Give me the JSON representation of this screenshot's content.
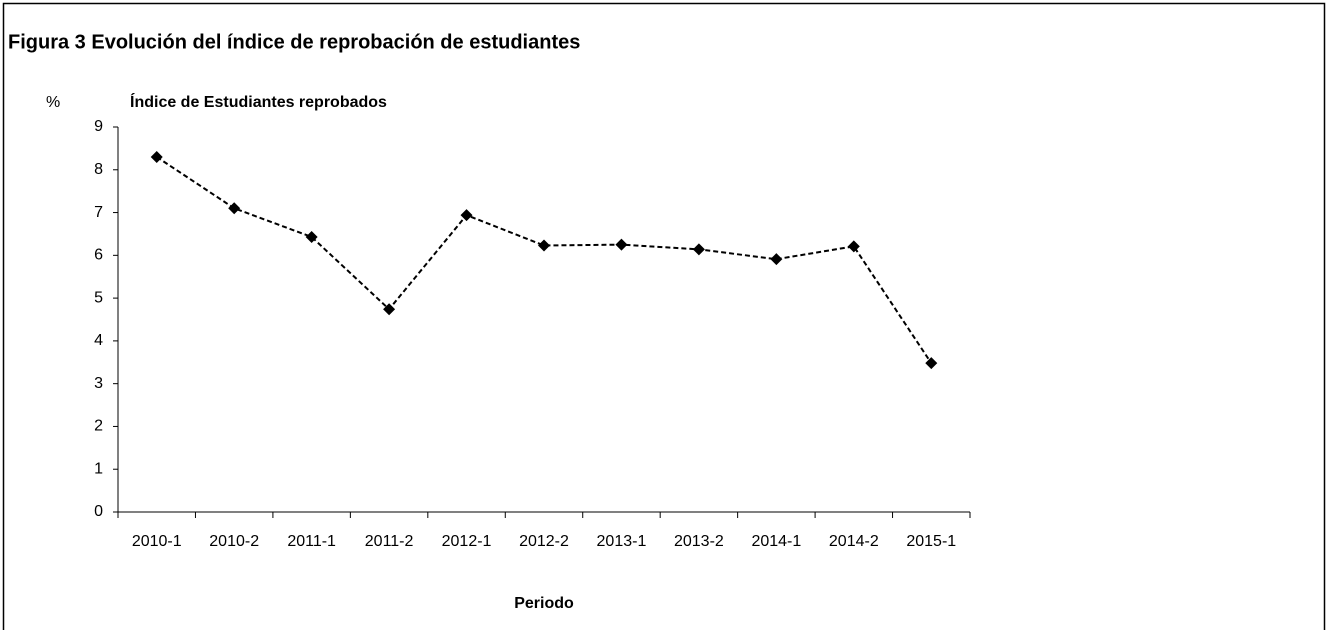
{
  "chart_data": {
    "type": "line",
    "title": "Figura 3 Evolución del índice de reprobación de estudiantes",
    "subtitle": "Índice de Estudiantes reprobados",
    "y_label": "%",
    "x_label": "Periodo",
    "categories": [
      "2010-1",
      "2010-2",
      "2011-1",
      "2011-2",
      "2012-1",
      "2012-2",
      "2013-1",
      "2013-2",
      "2014-1",
      "2014-2",
      "2015-1"
    ],
    "values": [
      8.3,
      7.1,
      6.43,
      4.74,
      6.94,
      6.23,
      6.25,
      6.14,
      5.91,
      6.21,
      3.48
    ],
    "color": "#000000",
    "line_style": "dashed",
    "marker": "diamond",
    "ylim": [
      0,
      9
    ],
    "yticks": [
      0,
      1,
      2,
      3,
      4,
      5,
      6,
      7,
      8,
      9
    ],
    "grid": false
  }
}
